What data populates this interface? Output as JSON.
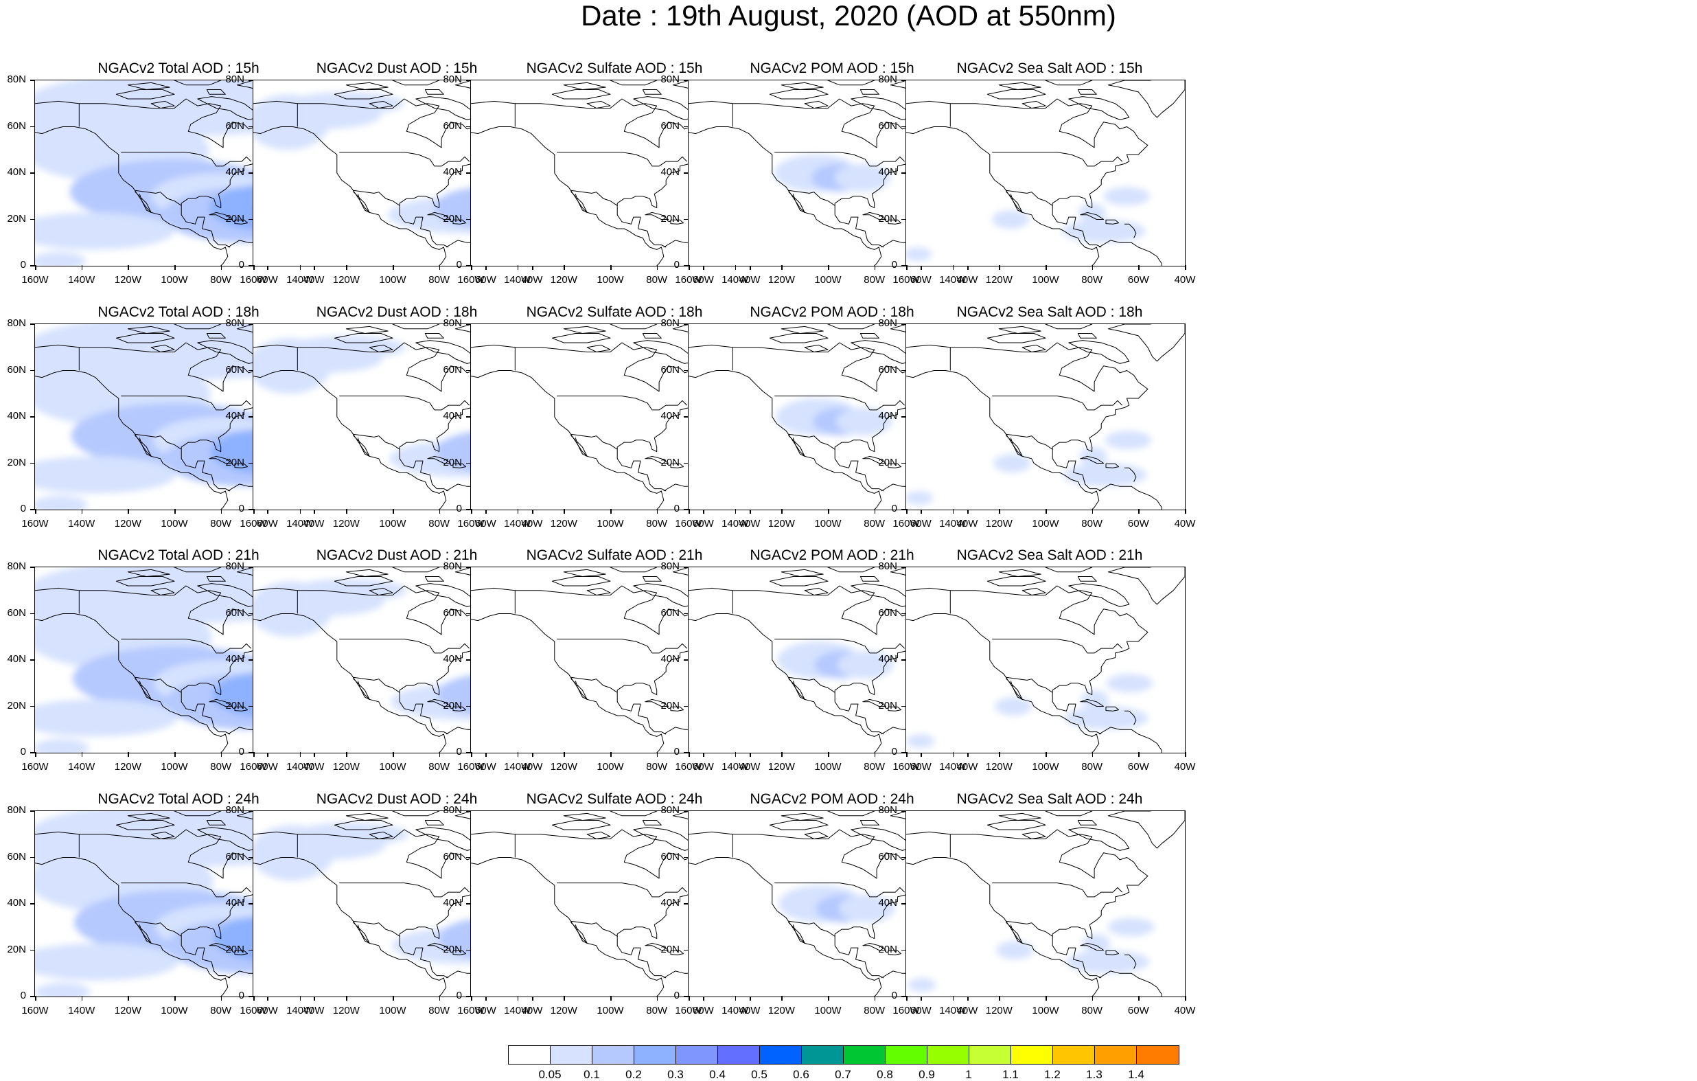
{
  "title": "Date : 19th August, 2020 (AOD at 550nm)",
  "rows": [
    {
      "hour": "15h",
      "titles": [
        "NGACv2 Total AOD : 15h",
        "NGACv2 Dust AOD : 15h",
        "NGACv2 Sulfate AOD : 15h",
        "NGACv2 POM AOD : 15h",
        "NGACv2 Sea Salt AOD : 15h"
      ]
    },
    {
      "hour": "18h",
      "titles": [
        "NGACv2 Total AOD : 18h",
        "NGACv2 Dust AOD : 18h",
        "NGACv2 Sulfate AOD : 18h",
        "NGACv2 POM AOD : 18h",
        "NGACv2 Sea Salt AOD : 18h"
      ]
    },
    {
      "hour": "21h",
      "titles": [
        "NGACv2 Total AOD : 21h",
        "NGACv2 Dust AOD : 21h",
        "NGACv2 Sulfate AOD : 21h",
        "NGACv2 POM AOD : 21h",
        "NGACv2 Sea Salt AOD : 21h"
      ]
    },
    {
      "hour": "24h",
      "titles": [
        "NGACv2 Total AOD : 24h",
        "NGACv2 Dust AOD : 24h",
        "NGACv2 Sulfate AOD : 24h",
        "NGACv2 POM AOD : 24h",
        "NGACv2 Sea Salt  AOD : 24h"
      ]
    }
  ],
  "columns": [
    "total",
    "dust",
    "sulfate",
    "pom",
    "seasalt"
  ],
  "lat_ticks": [
    "80N",
    "60N",
    "40N",
    "20N",
    "0"
  ],
  "lon_ticks": [
    "160W",
    "140W",
    "120W",
    "100W",
    "80W",
    "60W",
    "40W"
  ],
  "map_extent": {
    "lon": [
      -160,
      -40
    ],
    "lat": [
      0,
      80
    ]
  },
  "colorbar": {
    "colors": [
      "#ffffff",
      "#d6e2ff",
      "#b5c9ff",
      "#8eb2ff",
      "#7f96ff",
      "#6370ff",
      "#0063ff",
      "#009696",
      "#00c633",
      "#63ff00",
      "#96ff00",
      "#c6ff33",
      "#ffff00",
      "#ffc600",
      "#ffa000",
      "#ff7c00",
      "#ff1900"
    ],
    "labels": [
      "0.05",
      "0.1",
      "0.2",
      "0.3",
      "0.4",
      "0.5",
      "0.6",
      "0.7",
      "0.8",
      "0.9",
      "1",
      "1.1",
      "1.2",
      "1.3",
      "1.4"
    ]
  }
}
